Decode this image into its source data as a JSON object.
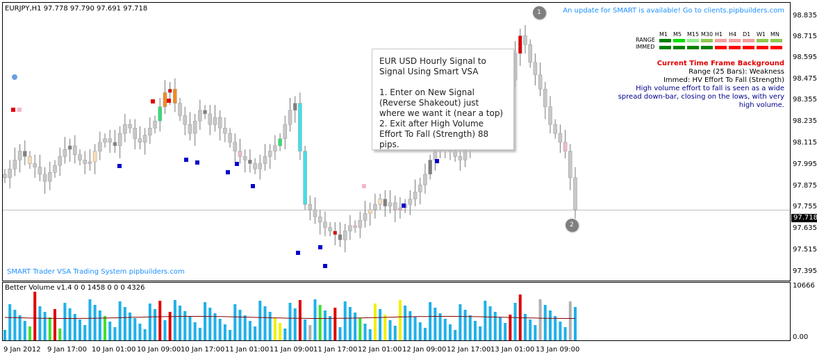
{
  "chart_header": {
    "symbol_info": "EURJPY,H1  97.778 97.790 97.691 97.718"
  },
  "update_notice": "An update for SMART is available! Go to clients.pipbuilders.com",
  "watermark": "SMART Trader VSA Trading System pipbuilders.com",
  "callout": {
    "title": "EUR USD Hourly Signal to Signal Using Smart VSA",
    "step1": "1. Enter on New Signal (Reverse Shakeout) just where we want it (near a top)",
    "step2": "2. Exit after High Volume Effort To Fall (Strength) 88 pips."
  },
  "markers": {
    "m1": "1",
    "m2": "2"
  },
  "timeframes": {
    "headers": [
      "M1",
      "M5",
      "M15",
      "M30",
      "H1",
      "H4",
      "D1",
      "W1",
      "MN"
    ],
    "range_label": "RANGE",
    "immed_label": "IMMED",
    "range_colors": [
      "#008000",
      "#00e000",
      "#90ee90",
      "#90c850",
      "#f4a0a0",
      "#f4a0a0",
      "#f4a0a0",
      "#90c850",
      "#90c850"
    ],
    "immed_colors": [
      "#008000",
      "#008000",
      "#008000",
      "#008000",
      "#ff0000",
      "#ff0000",
      "#ff0000",
      "#ff0000",
      "#ff0000"
    ]
  },
  "ctf_panel": {
    "title": "Current Time Frame Background",
    "range": "Range (25 Bars): Weakness",
    "immed": "Immed: HV Effort To Fall (Strength)",
    "desc1": "High volume effort to fall is seen as a wide",
    "desc2": "spread down-bar, closing on the lows, with very",
    "desc3": "high volume."
  },
  "price_axis": [
    "98.835",
    "98.715",
    "98.595",
    "98.475",
    "98.355",
    "98.235",
    "98.115",
    "97.995",
    "97.875",
    "97.755",
    "97.635",
    "97.515",
    "97.395"
  ],
  "current_price": "97.718",
  "volume": {
    "title": "Better Volume v1.4 0 0 1458 0 0 0 4326",
    "max_label": "10666",
    "min_label": "0.00"
  },
  "time_axis": [
    "9 Jan 2012",
    "9 Jan 17:00",
    "10 Jan 01:00",
    "10 Jan 09:00",
    "10 Jan 17:00",
    "11 Jan 01:00",
    "11 Jan 09:00",
    "11 Jan 17:00",
    "12 Jan 01:00",
    "12 Jan 09:00",
    "12 Jan 17:00",
    "13 Jan 01:00",
    "13 Jan 09:00"
  ],
  "colors": {
    "candle_neutral": "#c8c8c8",
    "candle_dark": "#808080",
    "up_cyan": "#40e0e8",
    "green": "#30e070",
    "red": "#e00000",
    "orange": "#f08c1e",
    "pink": "#f4b8c8",
    "peach": "#fbdcb4",
    "blue_dot": "#0000cc",
    "vol_blue": "#20b0e8",
    "vol_red": "#e00000",
    "vol_green": "#40e030",
    "vol_yellow": "#f0f000",
    "vol_gray": "#b0b0b0",
    "ma_line": "#800000"
  }
}
